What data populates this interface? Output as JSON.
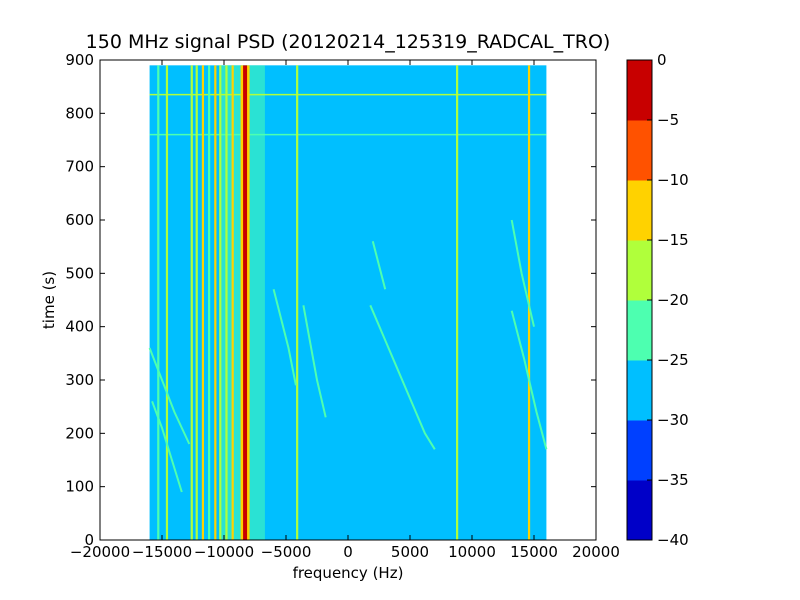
{
  "chart_data": {
    "type": "heatmap",
    "title": "150 MHz signal PSD (20120214_125319_RADCAL_TRO)",
    "xlabel": "frequency (Hz)",
    "ylabel": "time (s)",
    "xlim": [
      -20000,
      20000
    ],
    "ylim": [
      0,
      900
    ],
    "x_ticks": [
      -20000,
      -15000,
      -10000,
      -5000,
      0,
      5000,
      10000,
      15000,
      20000
    ],
    "x_tick_labels": [
      "−20000",
      "−15000",
      "−10000",
      "−5000",
      "0",
      "5000",
      "10000",
      "15000",
      "20000"
    ],
    "y_ticks": [
      0,
      100,
      200,
      300,
      400,
      500,
      600,
      700,
      800,
      900
    ],
    "y_tick_labels": [
      "0",
      "100",
      "200",
      "300",
      "400",
      "500",
      "600",
      "700",
      "800",
      "900"
    ],
    "data_extent": {
      "freq": [
        -16000,
        16000
      ],
      "time": [
        0,
        890
      ]
    },
    "background_level": -28,
    "colorbar": {
      "levels": [
        -40,
        -35,
        -30,
        -25,
        -20,
        -15,
        -10,
        -5,
        0
      ],
      "tick_labels": [
        "−40",
        "−35",
        "−30",
        "−25",
        "−20",
        "−15",
        "−10",
        "−5",
        "0"
      ],
      "colors": [
        "#0000c8",
        "#0040ff",
        "#00bfff",
        "#4dffb0",
        "#b0ff3b",
        "#ffd200",
        "#ff5200",
        "#c80000"
      ]
    },
    "main_carrier": {
      "freq": -8300,
      "level": -2
    },
    "carrier_sidebands": {
      "center": -8500,
      "half_width": 1800,
      "level": -21
    },
    "tones": [
      {
        "freq": -15300,
        "level": -22
      },
      {
        "freq": -14600,
        "level": -17
      },
      {
        "freq": -12600,
        "level": -17
      },
      {
        "freq": -12200,
        "level": -20
      },
      {
        "freq": -11700,
        "level": -15
      },
      {
        "freq": -11200,
        "level": -21
      },
      {
        "freq": -10700,
        "level": -14
      },
      {
        "freq": -10300,
        "level": -18
      },
      {
        "freq": -9800,
        "level": -16
      },
      {
        "freq": -9300,
        "level": -12
      },
      {
        "freq": -4100,
        "level": -16
      },
      {
        "freq": 8800,
        "level": -18
      },
      {
        "freq": 14600,
        "level": -15
      }
    ],
    "horizontal_features": [
      {
        "time": 835,
        "level": -20
      },
      {
        "time": 760,
        "level": -21
      }
    ],
    "drifting_tracks": [
      {
        "name": "",
        "points": [
          [
            -16000,
            360
          ],
          [
            -15000,
            300
          ],
          [
            -14000,
            240
          ],
          [
            -12800,
            180
          ]
        ],
        "level": -21
      },
      {
        "name": "",
        "points": [
          [
            -15800,
            260
          ],
          [
            -15000,
            210
          ],
          [
            -14200,
            150
          ],
          [
            -13400,
            90
          ]
        ],
        "level": -22
      },
      {
        "name": "",
        "points": [
          [
            -6000,
            470
          ],
          [
            -4800,
            360
          ],
          [
            -4200,
            290
          ]
        ],
        "level": -21
      },
      {
        "name": "",
        "points": [
          [
            -3600,
            440
          ],
          [
            -2500,
            300
          ],
          [
            -1800,
            230
          ]
        ],
        "level": -22
      },
      {
        "name": "",
        "points": [
          [
            1800,
            440
          ],
          [
            4000,
            320
          ],
          [
            6200,
            200
          ],
          [
            7000,
            170
          ]
        ],
        "level": -21
      },
      {
        "name": "",
        "points": [
          [
            2000,
            560
          ],
          [
            3000,
            470
          ]
        ],
        "level": -22
      },
      {
        "name": "",
        "points": [
          [
            13200,
            430
          ],
          [
            14200,
            340
          ],
          [
            15200,
            240
          ],
          [
            16000,
            170
          ]
        ],
        "level": -21
      },
      {
        "name": "",
        "points": [
          [
            13200,
            600
          ],
          [
            14000,
            500
          ],
          [
            15000,
            400
          ]
        ],
        "level": -22
      }
    ]
  }
}
